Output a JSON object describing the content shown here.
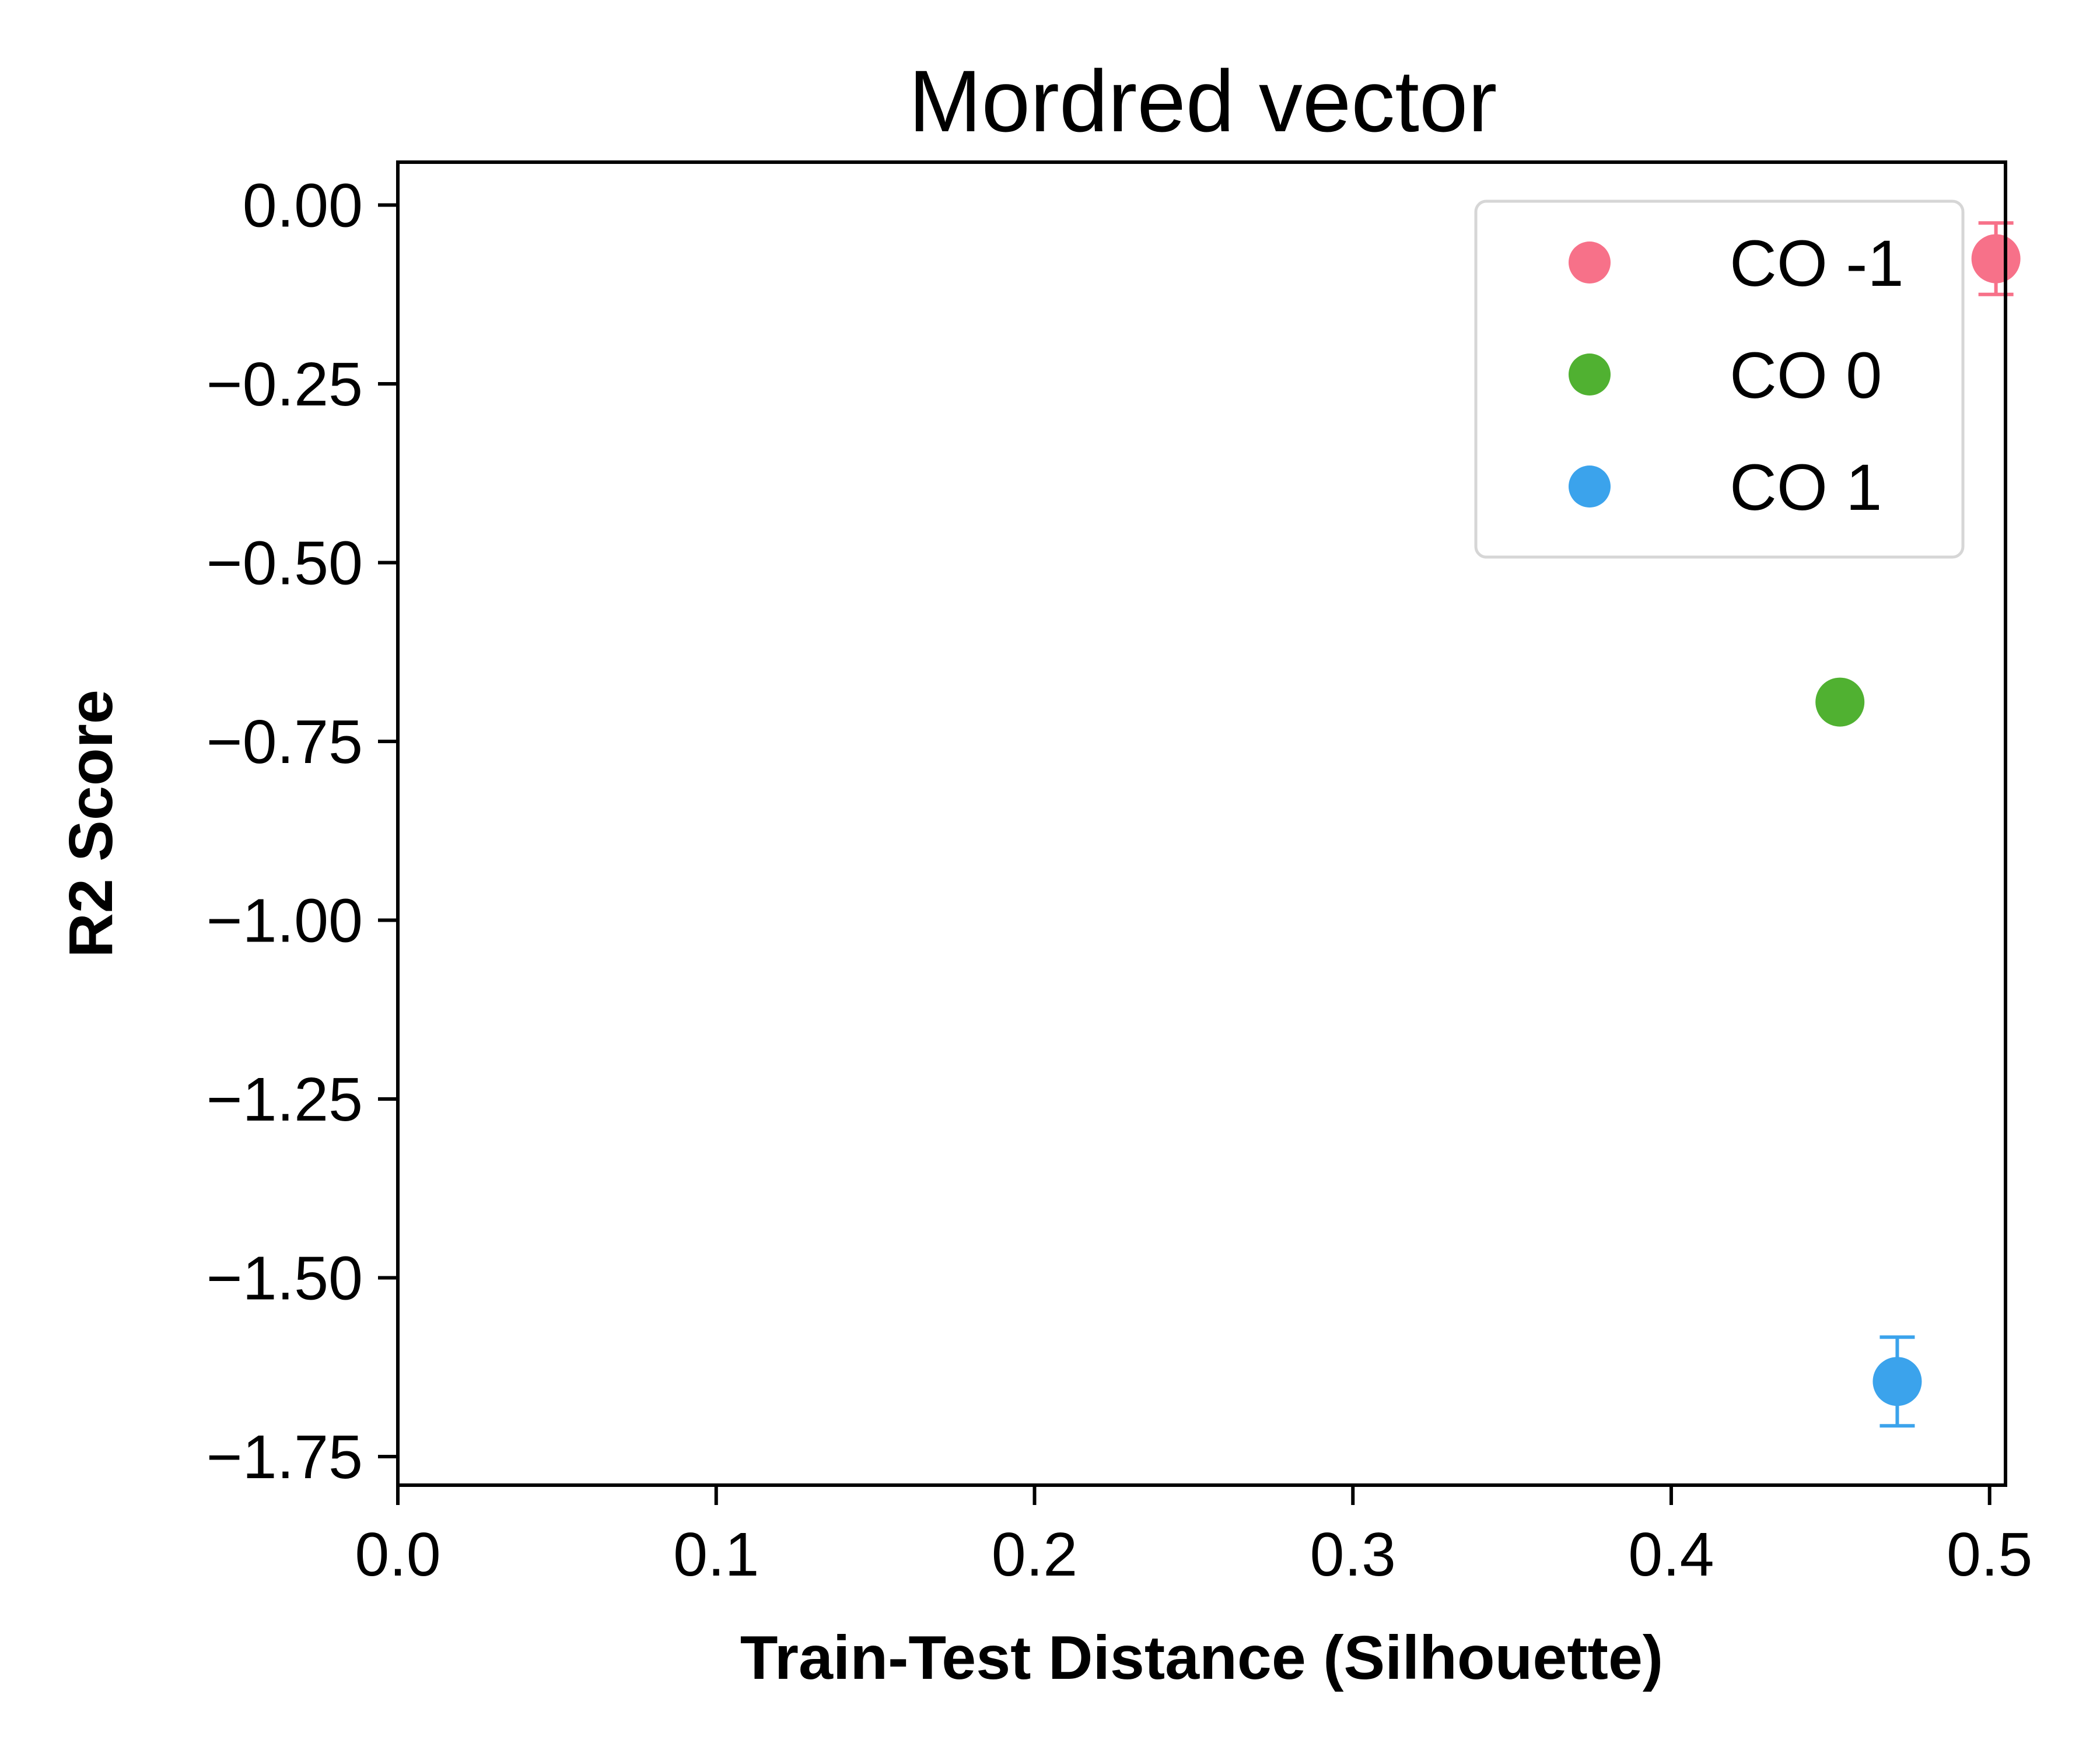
{
  "chart_data": {
    "type": "scatter",
    "title": "Mordred vector",
    "xlabel": "Train-Test Distance (Silhouette)",
    "ylabel": "R2 Score",
    "xlim": [
      0.0,
      0.505
    ],
    "ylim": [
      -1.79,
      0.06
    ],
    "x_ticks": [
      0.0,
      0.1,
      0.2,
      0.3,
      0.4,
      0.5
    ],
    "x_tick_labels": [
      "0.0",
      "0.1",
      "0.2",
      "0.3",
      "0.4",
      "0.5"
    ],
    "y_ticks": [
      0.0,
      -0.25,
      -0.5,
      -0.75,
      -1.0,
      -1.25,
      -1.5,
      -1.75
    ],
    "y_tick_labels": [
      "0.00",
      "−0.25",
      "−0.50",
      "−0.75",
      "−1.00",
      "−1.25",
      "−1.50",
      "−1.75"
    ],
    "grid": false,
    "legend_position": "top-right",
    "series": [
      {
        "name": "CO -1",
        "color": "#f77189",
        "points": [
          {
            "x": 0.502,
            "y": -0.075,
            "yerr": 0.05
          }
        ]
      },
      {
        "name": "CO 0",
        "color": "#50b131",
        "points": [
          {
            "x": 0.453,
            "y": -0.695,
            "yerr": 0.015
          }
        ]
      },
      {
        "name": "CO 1",
        "color": "#3ba3ec",
        "points": [
          {
            "x": 0.471,
            "y": -1.645,
            "yerr": 0.062
          }
        ]
      }
    ]
  }
}
